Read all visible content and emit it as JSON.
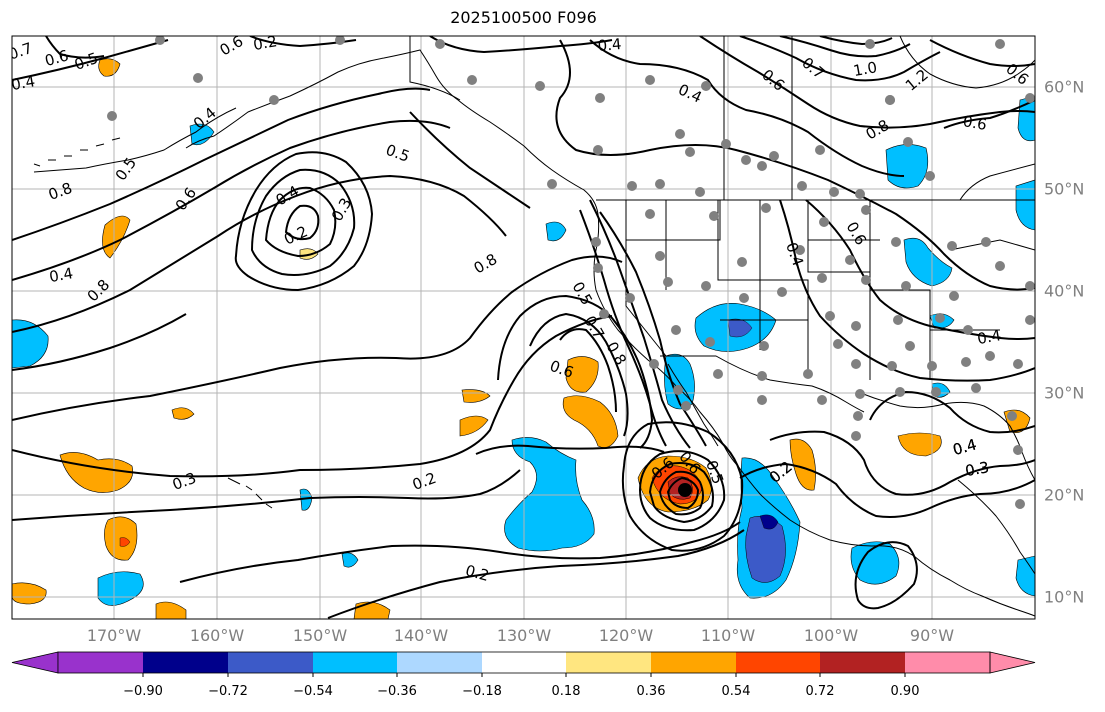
{
  "title": "2025100500 F096",
  "lon_labels": [
    "170°W",
    "160°W",
    "150°W",
    "140°W",
    "130°W",
    "120°W",
    "110°W",
    "100°W",
    "90°W"
  ],
  "lat_labels": [
    "60°N",
    "50°N",
    "40°N",
    "30°N",
    "20°N",
    "10°N"
  ],
  "colorbar": {
    "colors": [
      "#9932cc",
      "#00008b",
      "#3c5ac8",
      "#00bfff",
      "#add8ff",
      "#ffffff",
      "#ffe680",
      "#ffa500",
      "#ff4500",
      "#b22222",
      "#ff8caa"
    ],
    "tick_labels": [
      "−0.90",
      "−0.72",
      "−0.54",
      "−0.36",
      "−0.18",
      "0.18",
      "0.36",
      "0.54",
      "0.72",
      "0.90"
    ]
  },
  "contour_labels": [
    "0.7",
    "0.6",
    "0.5",
    "0.4",
    "0.6",
    "0.2",
    "0.4",
    "0.4",
    "0.4",
    "0.6",
    "0.7",
    "1.0",
    "1.2",
    "0.8",
    "0.6",
    "0.6",
    "0.5",
    "0.6",
    "0.5",
    "0.8",
    "0.4",
    "0.2",
    "0.3",
    "0.4",
    "0.8",
    "0.8",
    "0.6",
    "0.4",
    "0.5",
    "0.7",
    "0.8",
    "0.6",
    "0.4",
    "0.6",
    "0.4",
    "0.4",
    "0.3",
    "0.2",
    "0.6",
    "0.5",
    "0.2",
    "0.4",
    "0.3",
    "0.2",
    "0.3",
    "0.2"
  ],
  "colors": {
    "contour": "#000000",
    "grid": "#b4b4b4",
    "coast": "#000000",
    "station": "#808080",
    "axis_label": "#808080"
  }
}
